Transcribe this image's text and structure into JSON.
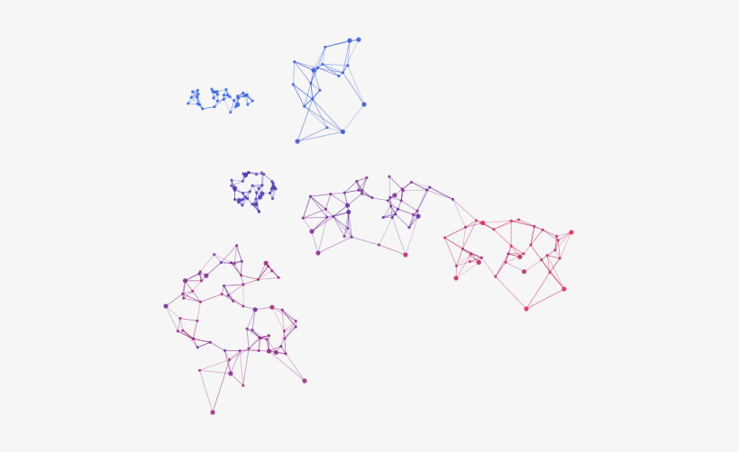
{
  "graph": {
    "colors": {
      "background": "#f6f6f6",
      "blue": "#2d63e0",
      "purple": "#5a2ca6",
      "magenta": "#a0287a",
      "red": "#e0294d"
    },
    "clusters": [
      {
        "id": "top-left-blue",
        "color": "blue"
      },
      {
        "id": "top-stem-blue",
        "color": "blue"
      },
      {
        "id": "mid-dense-purple",
        "color": "purple"
      },
      {
        "id": "ridge-violet",
        "color": "purple"
      },
      {
        "id": "lower-left-magenta",
        "color": "magenta"
      },
      {
        "id": "right-arm-red",
        "color": "red"
      }
    ]
  }
}
